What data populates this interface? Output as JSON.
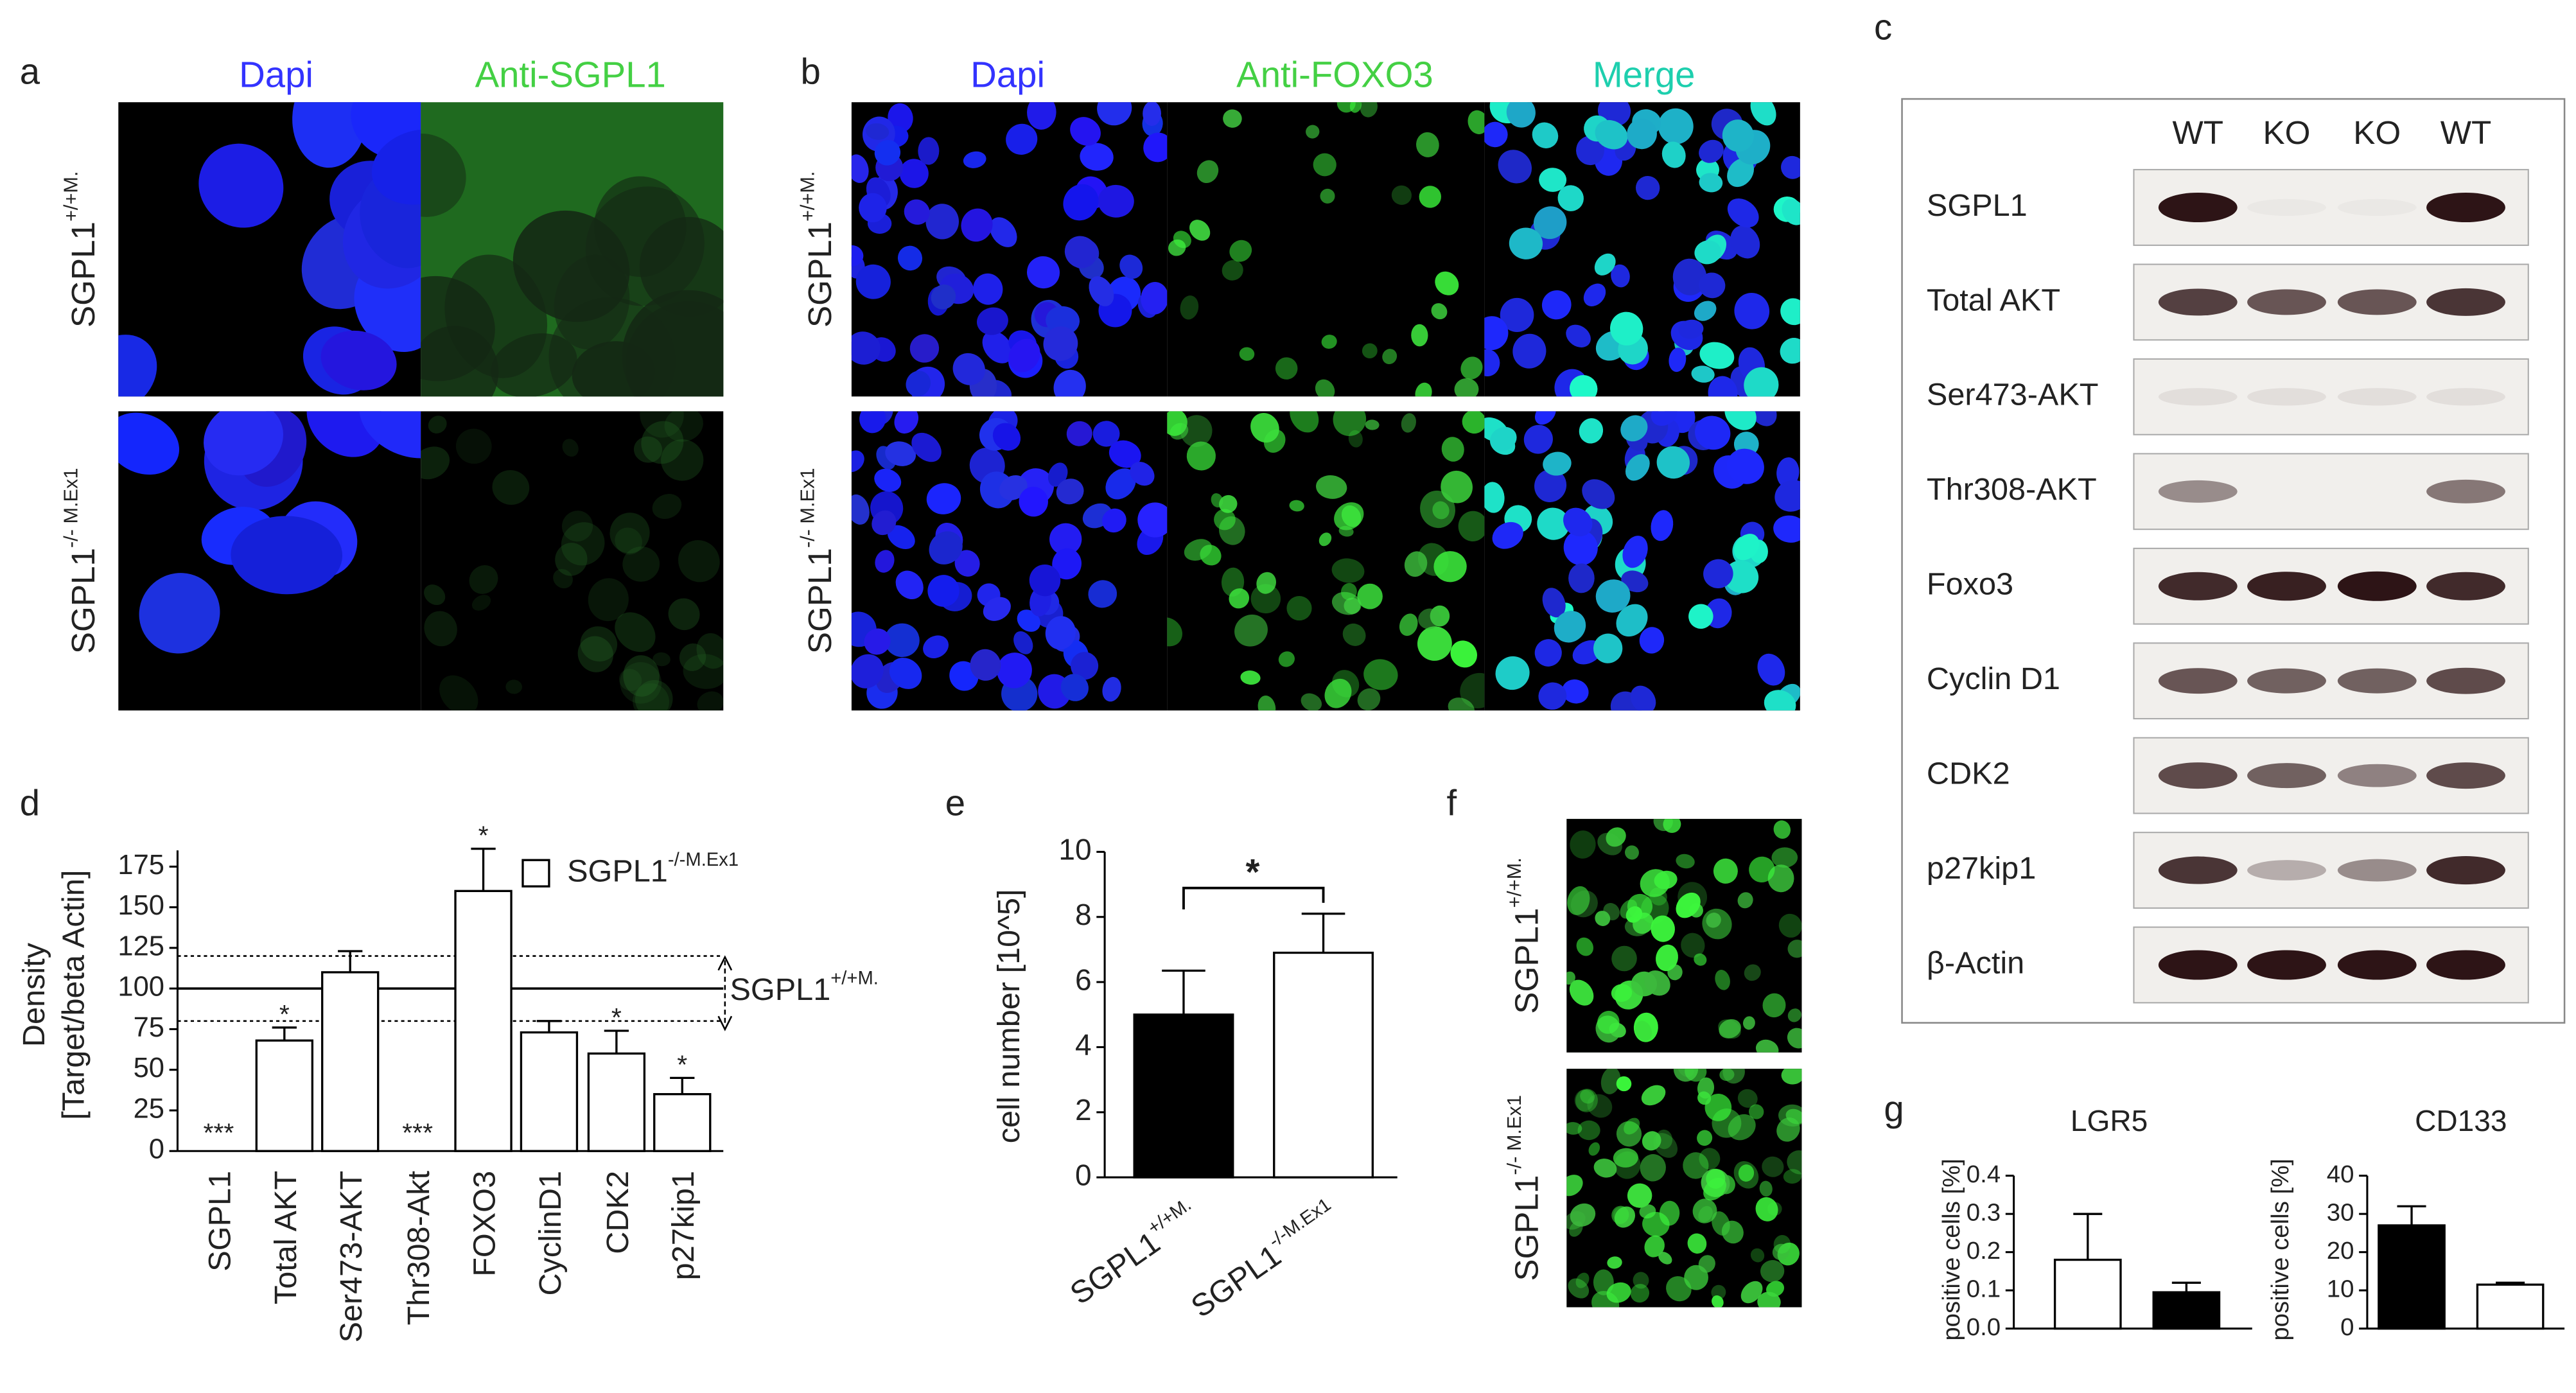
{
  "panels": {
    "a": {
      "label": "a",
      "columns": [
        "Dapi",
        "Anti-SGPL1"
      ],
      "column_colors": [
        "#3333ff",
        "#44d044"
      ],
      "rows": [
        {
          "base": "SGPL1",
          "sup": "+/+M."
        },
        {
          "base": "SGPL1",
          "sup": "-/- M.Ex1"
        }
      ]
    },
    "b": {
      "label": "b",
      "columns": [
        "Dapi",
        "Anti-FOXO3",
        "Merge"
      ],
      "column_colors": [
        "#3333ff",
        "#44d044",
        "#1ecfae"
      ],
      "rows": [
        {
          "base": "SGPL1",
          "sup": "+/+M."
        },
        {
          "base": "SGPL1",
          "sup": "-/- M.Ex1"
        }
      ]
    },
    "c": {
      "label": "c",
      "lanes": [
        "WT",
        "KO",
        "KO",
        "WT"
      ],
      "proteins": [
        "SGPL1",
        "Total AKT",
        "Ser473-AKT",
        "Thr308-AKT",
        "Foxo3",
        "Cyclin D1",
        "CDK2",
        "p27kip1",
        "β-Actin"
      ]
    },
    "f": {
      "label": "f",
      "rows": [
        {
          "base": "SGPL1",
          "sup": "+/+M."
        },
        {
          "base": "SGPL1",
          "sup": "-/- M.Ex1"
        }
      ]
    }
  },
  "chart_data": [
    {
      "type": "bar",
      "panel_label": "d",
      "y_label_lines": [
        "Density",
        "[Target/beta Actin]"
      ],
      "categories": [
        "SGPL1",
        "Total AKT",
        "Ser473-AKT",
        "Thr308-Akt",
        "FOXO3",
        "CyclinD1",
        "CDK2",
        "p27kip1"
      ],
      "series": [
        {
          "name": {
            "base": "SGPL1",
            "sup": "-/-M.Ex1"
          },
          "color": "#ffffff",
          "values": [
            0,
            68,
            110,
            0,
            160,
            73,
            60,
            35
          ],
          "errors": [
            null,
            8,
            13,
            null,
            26,
            7,
            14,
            10
          ]
        }
      ],
      "significance": [
        "***",
        "*",
        null,
        "***",
        "*",
        null,
        "*",
        "*"
      ],
      "reference_lines": [
        {
          "value": 100,
          "style": "solid"
        },
        {
          "value": 80,
          "style": "dotted"
        },
        {
          "value": 120,
          "style": "dotted"
        }
      ],
      "reference_label": {
        "base": "SGPL1",
        "sup": "+/+M."
      },
      "ylim": [
        0,
        185
      ],
      "yticks": [
        0,
        25,
        50,
        75,
        100,
        125,
        150,
        175
      ]
    },
    {
      "type": "bar",
      "panel_label": "e",
      "y_label_lines": [
        "cell number [10^5]"
      ],
      "categories": [
        {
          "base": "SGPL1",
          "sup": "+/+M."
        },
        {
          "base": "SGPL1",
          "sup": "-/-M.Ex1"
        }
      ],
      "series": [
        {
          "colors": [
            "#000000",
            "#ffffff"
          ],
          "values": [
            5.0,
            6.9
          ],
          "errors": [
            1.35,
            1.2
          ]
        }
      ],
      "comparison": "*",
      "ylim": [
        0,
        10
      ],
      "yticks": [
        0,
        2,
        4,
        6,
        8,
        10
      ]
    },
    {
      "type": "bar",
      "panel_label": "g",
      "title": "LGR5",
      "y_label_lines": [
        "positive cells [%]"
      ],
      "categories": [
        null,
        null
      ],
      "series": [
        {
          "colors": [
            "#ffffff",
            "#000000"
          ],
          "values": [
            0.18,
            0.095
          ],
          "errors": [
            0.12,
            0.025
          ]
        }
      ],
      "ylim": [
        0,
        0.4
      ],
      "yticks": [
        {
          "value": 0,
          "label": "0.0"
        },
        0.1,
        0.2,
        0.3,
        0.4
      ]
    },
    {
      "type": "bar",
      "title": "CD133",
      "y_label_lines": [
        "positive cells [%]"
      ],
      "categories": [
        null,
        null
      ],
      "series": [
        {
          "colors": [
            "#000000",
            "#ffffff"
          ],
          "values": [
            27,
            11.5
          ],
          "errors": [
            5,
            0.5
          ]
        }
      ],
      "ylim": [
        0,
        40
      ],
      "yticks": [
        0,
        10,
        20,
        30,
        40
      ]
    }
  ]
}
